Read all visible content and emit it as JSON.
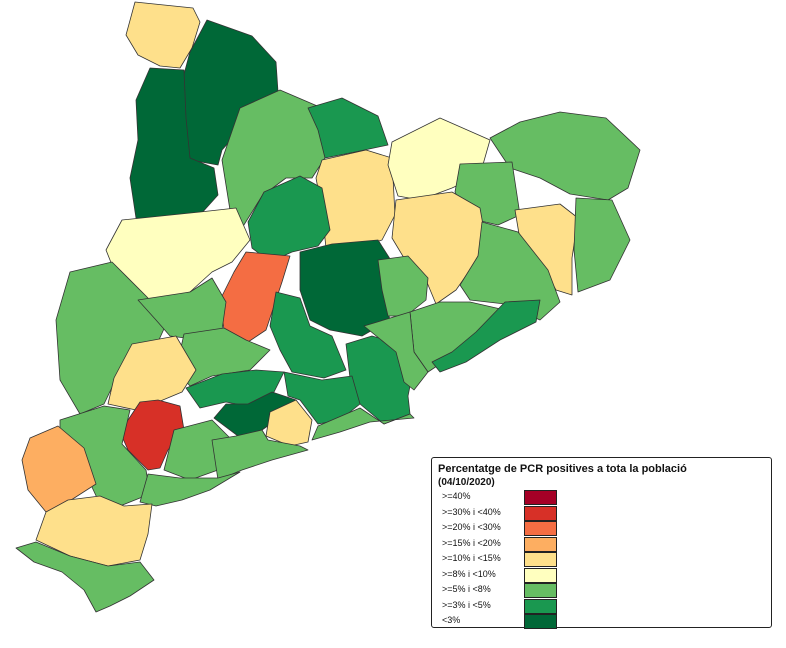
{
  "legend": {
    "title": "Percentatge de PCR positives a tota la població",
    "date": "(04/10/2020)",
    "items": [
      {
        "label": ">=40%",
        "color": "#a50026"
      },
      {
        "label": ">=30% i <40%",
        "color": "#d73027"
      },
      {
        "label": ">=20% i <30%",
        "color": "#f46d43"
      },
      {
        "label": ">=15% i <20%",
        "color": "#fdae61"
      },
      {
        "label": ">=10% i <15%",
        "color": "#fee08b"
      },
      {
        "label": ">=8% i <10%",
        "color": "#ffffbf"
      },
      {
        "label": ">=5% i <8%",
        "color": "#66bd63"
      },
      {
        "label": ">=3% i <5%",
        "color": "#1a9850"
      },
      {
        "label": "<3%",
        "color": "#006837"
      }
    ]
  }
}
